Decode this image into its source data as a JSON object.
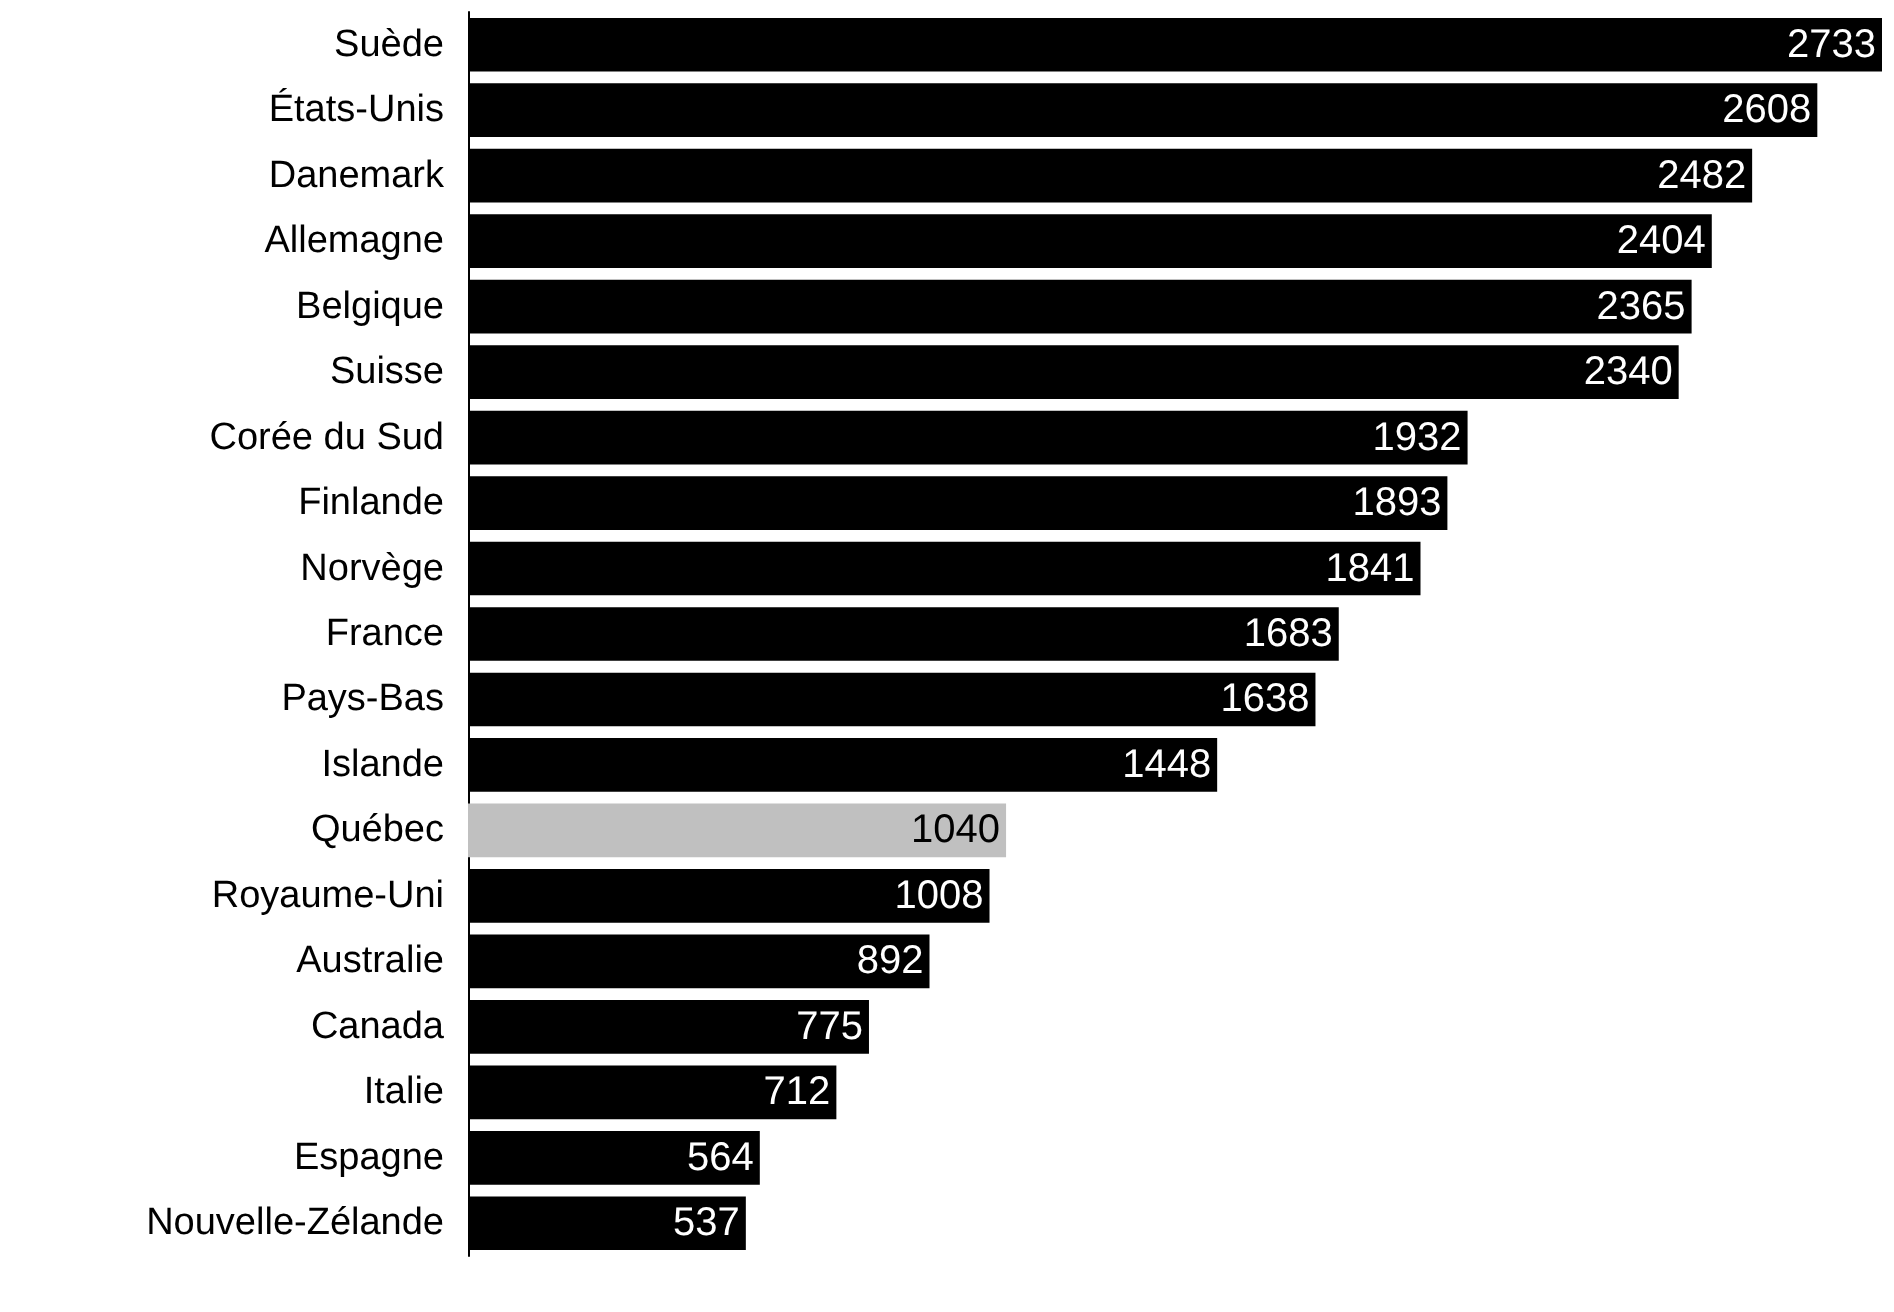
{
  "chart_data": {
    "type": "bar",
    "orientation": "horizontal",
    "categories": [
      "Suède",
      "États-Unis",
      "Danemark",
      "Allemagne",
      "Belgique",
      "Suisse",
      "Corée du Sud",
      "Finlande",
      "Norvège",
      "France",
      "Pays-Bas",
      "Islande",
      "Québec",
      "Royaume-Uni",
      "Australie",
      "Canada",
      "Italie",
      "Espagne",
      "Nouvelle-Zélande"
    ],
    "values": [
      2733,
      2608,
      2482,
      2404,
      2365,
      2340,
      1932,
      1893,
      1841,
      1683,
      1638,
      1448,
      1040,
      1008,
      892,
      775,
      712,
      564,
      537
    ],
    "colors": [
      "#000000",
      "#000000",
      "#000000",
      "#000000",
      "#000000",
      "#000000",
      "#000000",
      "#000000",
      "#000000",
      "#000000",
      "#000000",
      "#000000",
      "#c0c0c0",
      "#000000",
      "#000000",
      "#000000",
      "#000000",
      "#000000",
      "#000000"
    ],
    "data_labels": true
  }
}
